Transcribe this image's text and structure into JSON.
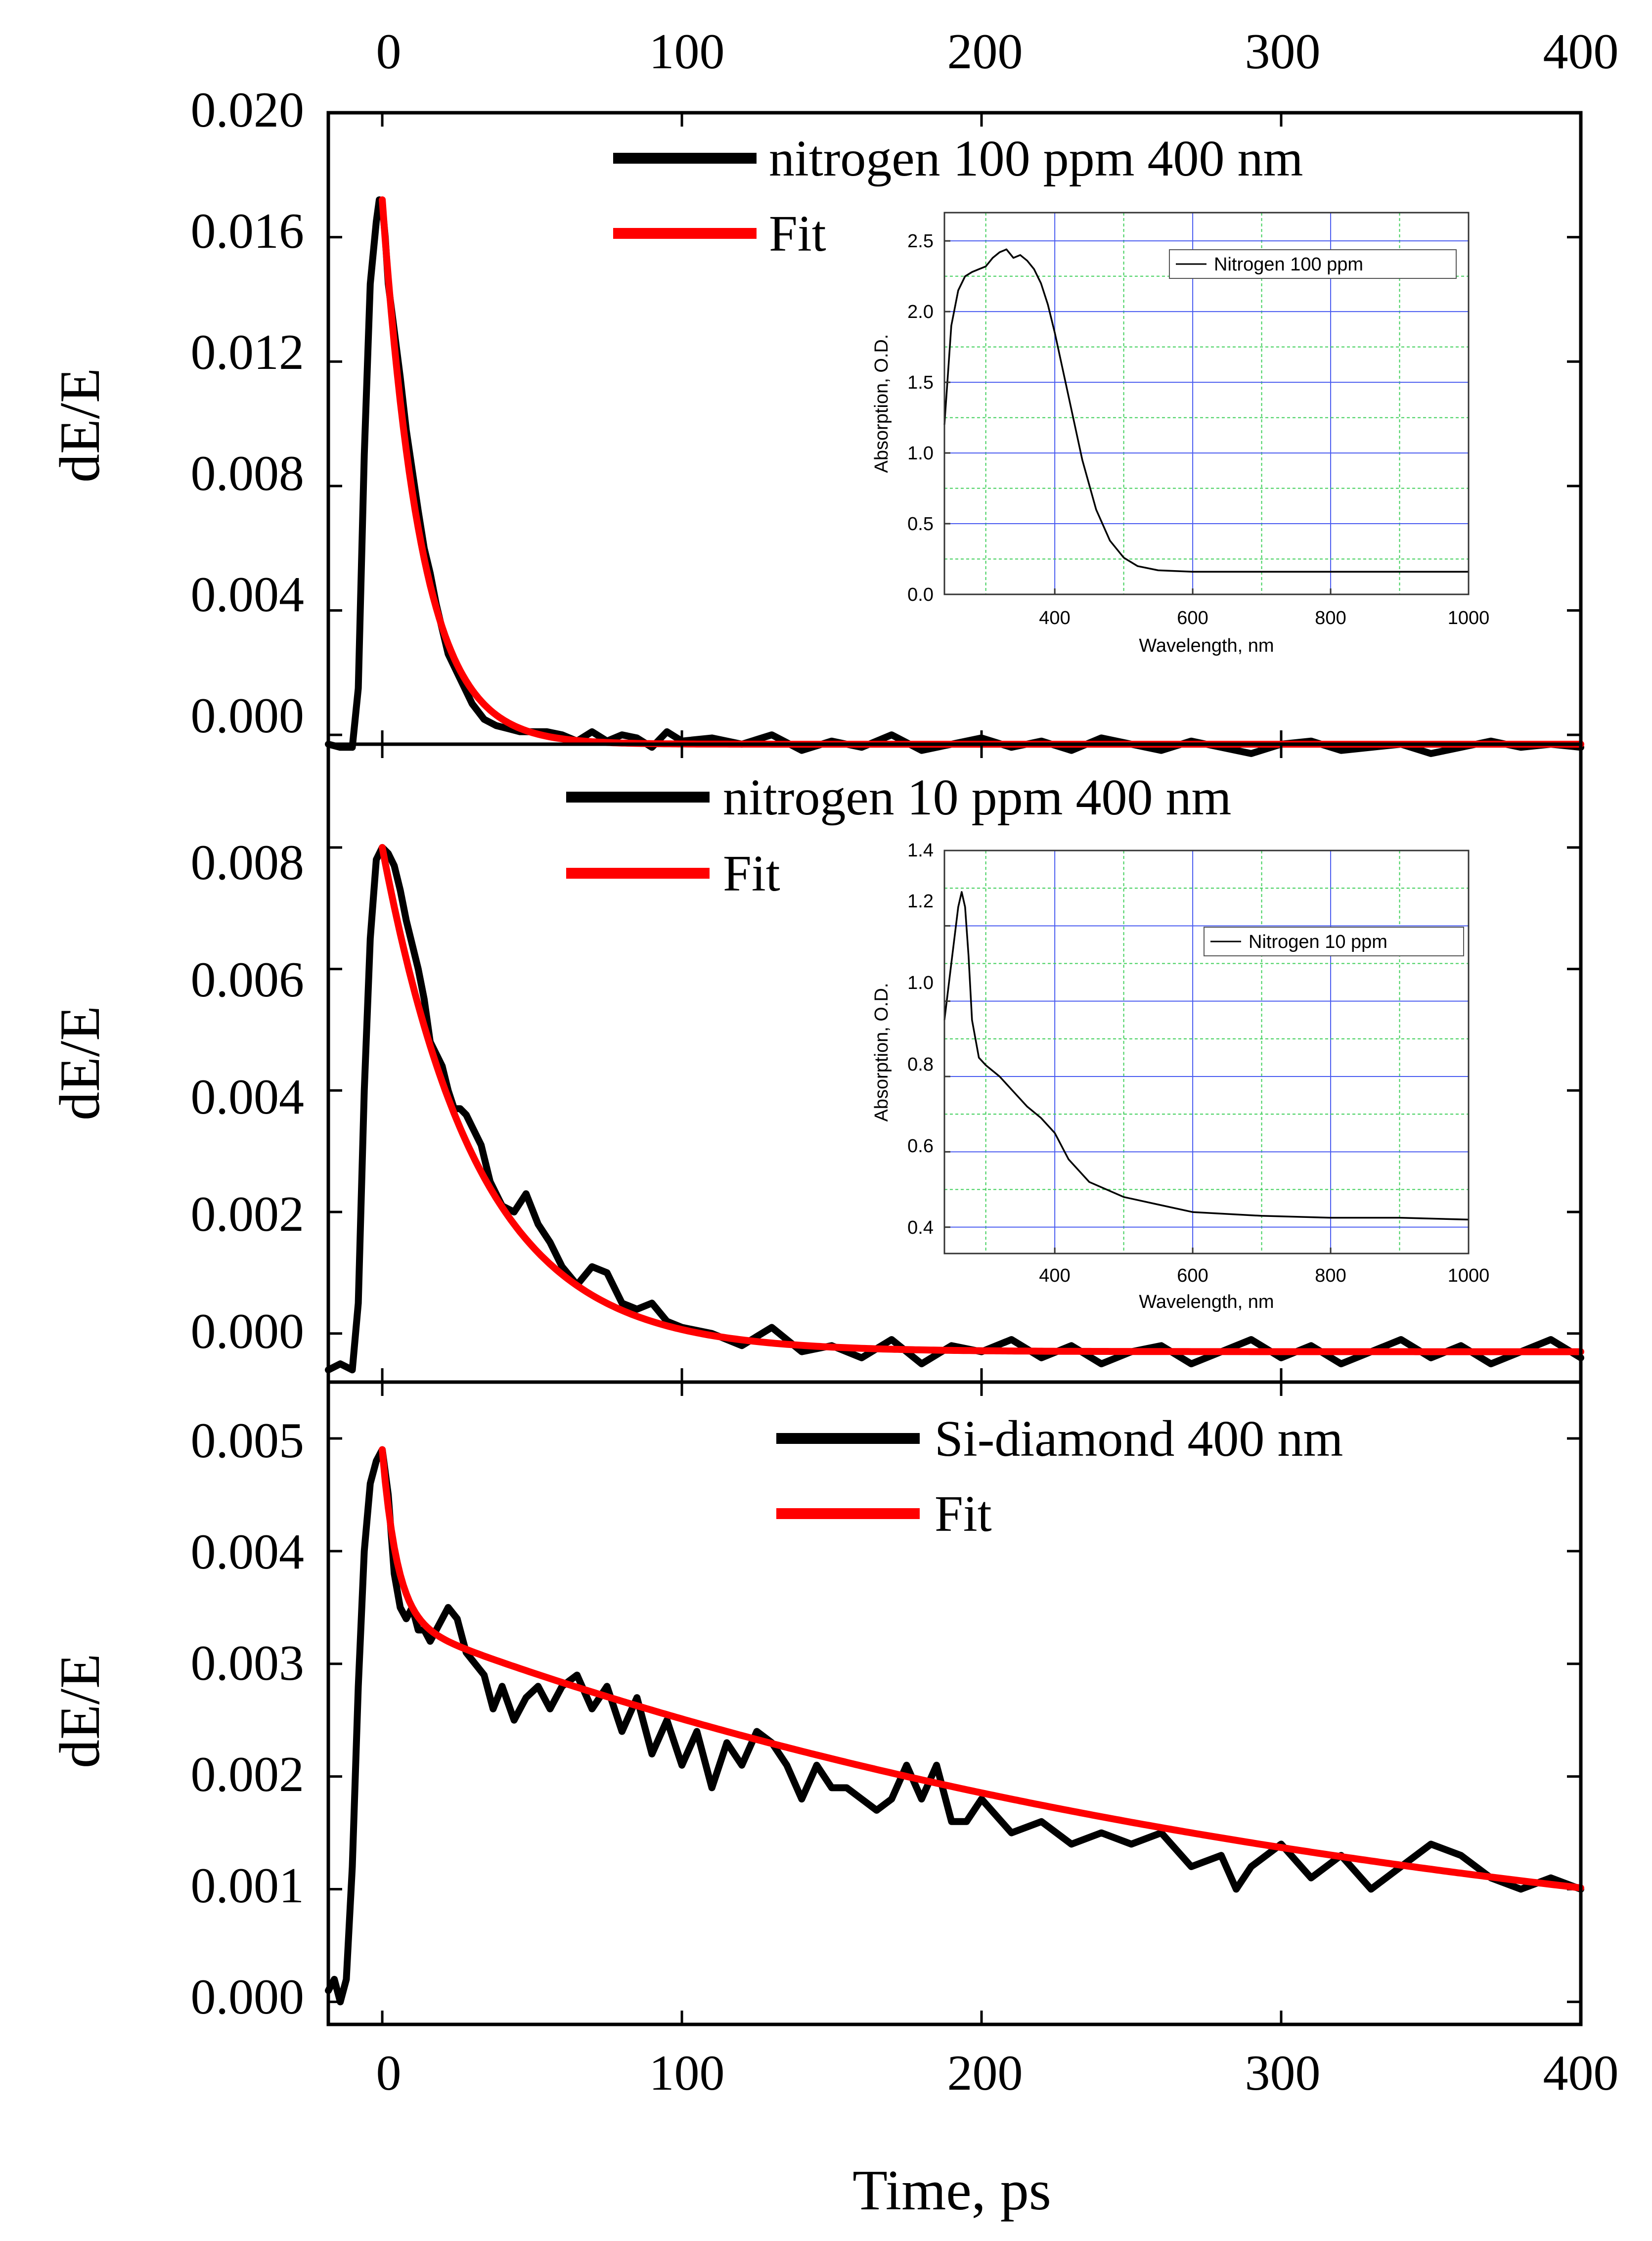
{
  "figure": {
    "xlabel": "Time, ps",
    "x_ticks": [
      "0",
      "100",
      "200",
      "300",
      "400"
    ],
    "xlim": [
      -18,
      400
    ]
  },
  "chart_data": [
    {
      "type": "line",
      "title": "",
      "xlabel": "Time, ps",
      "ylabel": "dE/E",
      "xlim": [
        -18,
        400
      ],
      "ylim": [
        -0.0003,
        0.02
      ],
      "y_ticks": [
        "0.000",
        "0.004",
        "0.008",
        "0.012",
        "0.016",
        "0.020"
      ],
      "y_tick_values": [
        0,
        0.004,
        0.008,
        0.012,
        0.016,
        0.02
      ],
      "series": [
        {
          "name": "nitrogen 100 ppm 400 nm",
          "color": "#000000",
          "x": [
            -18,
            -14,
            -10,
            -8,
            -6,
            -4,
            -2,
            -1,
            0,
            1,
            2,
            4,
            6,
            8,
            10,
            12,
            14,
            16,
            18,
            20,
            22,
            24,
            26,
            28,
            30,
            34,
            38,
            42,
            46,
            50,
            55,
            60,
            65,
            70,
            75,
            80,
            85,
            90,
            95,
            100,
            110,
            120,
            130,
            140,
            150,
            160,
            170,
            180,
            190,
            200,
            210,
            220,
            230,
            240,
            250,
            260,
            270,
            280,
            290,
            300,
            310,
            320,
            330,
            340,
            350,
            360,
            370,
            380,
            390,
            400
          ],
          "y": [
            -0.0003,
            -0.0004,
            -0.0004,
            0.0015,
            0.009,
            0.0145,
            0.0165,
            0.0172,
            0.017,
            0.016,
            0.0145,
            0.013,
            0.0115,
            0.0098,
            0.0085,
            0.0072,
            0.006,
            0.0052,
            0.0042,
            0.0034,
            0.0026,
            0.0022,
            0.0018,
            0.0014,
            0.001,
            0.0005,
            0.0003,
            0.0002,
            0.0001,
            0.0001,
            0.0001,
            0.0,
            -0.0002,
            0.0001,
            -0.0002,
            0.0,
            -0.0001,
            -0.0004,
            0.0001,
            -0.0002,
            -0.0001,
            -0.0003,
            0.0,
            -0.0005,
            -0.0002,
            -0.0004,
            0.0,
            -0.0005,
            -0.0003,
            -0.0001,
            -0.0004,
            -0.0002,
            -0.0005,
            -0.0001,
            -0.0003,
            -0.0005,
            -0.0002,
            -0.0004,
            -0.0006,
            -0.0003,
            -0.0002,
            -0.0005,
            -0.0004,
            -0.0003,
            -0.0006,
            -0.0004,
            -0.0002,
            -0.0004,
            -0.0003,
            -0.0004
          ]
        },
        {
          "name": "Fit",
          "color": "#ff0000",
          "model": "exp",
          "x0": 0,
          "y0": 0.0172,
          "tau": 13,
          "offset": -0.0003,
          "x_end": 400
        }
      ],
      "inset": {
        "type": "line",
        "xlabel": "Wavelength, nm",
        "ylabel": "Absorption, O.D.",
        "xlim": [
          240,
          1000
        ],
        "ylim": [
          0,
          2.7
        ],
        "x_ticks": [
          "400",
          "600",
          "800",
          "1000"
        ],
        "x_tick_values": [
          400,
          600,
          800,
          1000
        ],
        "y_ticks": [
          "0.0",
          "0.5",
          "1.0",
          "1.5",
          "2.0",
          "2.5"
        ],
        "y_tick_values": [
          0,
          0.5,
          1.0,
          1.5,
          2.0,
          2.5
        ],
        "grid": true,
        "legend": "Nitrogen 100 ppm",
        "series": {
          "x": [
            240,
            250,
            260,
            270,
            280,
            290,
            300,
            310,
            320,
            330,
            340,
            350,
            360,
            370,
            380,
            390,
            400,
            420,
            440,
            460,
            480,
            500,
            520,
            550,
            600,
            700,
            800,
            900,
            1000
          ],
          "y": [
            1.2,
            1.9,
            2.15,
            2.25,
            2.28,
            2.3,
            2.32,
            2.38,
            2.42,
            2.44,
            2.38,
            2.4,
            2.36,
            2.3,
            2.2,
            2.05,
            1.85,
            1.4,
            0.95,
            0.6,
            0.38,
            0.26,
            0.2,
            0.17,
            0.16,
            0.16,
            0.16,
            0.16,
            0.16
          ]
        }
      }
    },
    {
      "type": "line",
      "title": "",
      "xlabel": "Time, ps",
      "ylabel": "dE/E",
      "xlim": [
        -18,
        400
      ],
      "ylim": [
        -0.0008,
        0.0097
      ],
      "y_ticks": [
        "0.000",
        "0.002",
        "0.004",
        "0.006",
        "0.008"
      ],
      "y_tick_values": [
        0,
        0.002,
        0.004,
        0.006,
        0.008
      ],
      "series": [
        {
          "name": "nitrogen 10 ppm 400 nm",
          "color": "#000000",
          "x": [
            -18,
            -14,
            -10,
            -8,
            -6,
            -4,
            -2,
            0,
            2,
            4,
            6,
            8,
            10,
            12,
            14,
            16,
            18,
            20,
            22,
            24,
            26,
            28,
            30,
            33,
            36,
            40,
            44,
            48,
            52,
            56,
            60,
            65,
            70,
            75,
            80,
            85,
            90,
            95,
            100,
            110,
            120,
            130,
            140,
            150,
            160,
            170,
            180,
            190,
            200,
            210,
            220,
            230,
            240,
            250,
            260,
            270,
            280,
            290,
            300,
            310,
            320,
            330,
            340,
            350,
            360,
            370,
            380,
            390,
            400
          ],
          "y": [
            -0.0006,
            -0.0005,
            -0.0006,
            0.0005,
            0.004,
            0.0065,
            0.0078,
            0.008,
            0.0079,
            0.0077,
            0.0073,
            0.0068,
            0.0064,
            0.006,
            0.0055,
            0.0048,
            0.0046,
            0.0044,
            0.004,
            0.0037,
            0.0037,
            0.0036,
            0.0034,
            0.0031,
            0.0025,
            0.0021,
            0.002,
            0.0023,
            0.0018,
            0.0015,
            0.0011,
            0.0008,
            0.0011,
            0.001,
            0.0005,
            0.0004,
            0.0005,
            0.0002,
            0.0001,
            0.0,
            -0.0002,
            0.0001,
            -0.0003,
            -0.0002,
            -0.0004,
            -0.0001,
            -0.0005,
            -0.0002,
            -0.0003,
            -0.0001,
            -0.0004,
            -0.0002,
            -0.0005,
            -0.0003,
            -0.0002,
            -0.0005,
            -0.0003,
            -0.0001,
            -0.0004,
            -0.0002,
            -0.0005,
            -0.0003,
            -0.0001,
            -0.0004,
            -0.0002,
            -0.0005,
            -0.0003,
            -0.0001,
            -0.0004
          ]
        },
        {
          "name": "Fit",
          "color": "#ff0000",
          "model": "exp",
          "x0": 0,
          "y0": 0.008,
          "tau": 32,
          "offset": -0.0003,
          "x_end": 400
        }
      ],
      "inset": {
        "type": "line",
        "xlabel": "Wavelength, nm",
        "ylabel": "Absorption, O.D.",
        "xlim": [
          240,
          1000
        ],
        "ylim": [
          0.33,
          1.4
        ],
        "x_ticks": [
          "400",
          "600",
          "800",
          "1000"
        ],
        "x_tick_values": [
          400,
          600,
          800,
          1000
        ],
        "y_ticks": [
          "0.4",
          "0.6",
          "0.8",
          "1.0",
          "1.2",
          "1.4"
        ],
        "y_tick_values": [
          0.4,
          0.6,
          0.8,
          1.0,
          1.2,
          1.4
        ],
        "grid": true,
        "legend": "Nitrogen 10 ppm",
        "series": {
          "x": [
            240,
            250,
            260,
            265,
            270,
            275,
            280,
            290,
            300,
            320,
            340,
            360,
            380,
            400,
            420,
            450,
            500,
            550,
            600,
            700,
            800,
            900,
            1000
          ],
          "y": [
            0.95,
            1.1,
            1.25,
            1.29,
            1.25,
            1.12,
            0.95,
            0.85,
            0.83,
            0.8,
            0.76,
            0.72,
            0.69,
            0.65,
            0.58,
            0.52,
            0.48,
            0.46,
            0.44,
            0.43,
            0.425,
            0.425,
            0.42
          ]
        }
      }
    },
    {
      "type": "line",
      "title": "",
      "xlabel": "Time, ps",
      "ylabel": "dE/E",
      "xlim": [
        -18,
        400
      ],
      "ylim": [
        -0.0002,
        0.0055
      ],
      "y_ticks": [
        "0.000",
        "0.001",
        "0.002",
        "0.003",
        "0.004",
        "0.005"
      ],
      "y_tick_values": [
        0,
        0.001,
        0.002,
        0.003,
        0.004,
        0.005
      ],
      "series": [
        {
          "name": "Si-diamond 400 nm",
          "color": "#000000",
          "x": [
            -18,
            -16,
            -14,
            -12,
            -10,
            -8,
            -6,
            -4,
            -2,
            0,
            2,
            4,
            6,
            8,
            10,
            12,
            14,
            16,
            18,
            20,
            22,
            25,
            28,
            31,
            34,
            37,
            40,
            44,
            48,
            52,
            56,
            60,
            65,
            70,
            75,
            80,
            85,
            90,
            95,
            100,
            105,
            110,
            115,
            120,
            125,
            130,
            135,
            140,
            145,
            150,
            155,
            160,
            165,
            170,
            175,
            180,
            185,
            190,
            195,
            200,
            210,
            220,
            230,
            240,
            250,
            260,
            270,
            280,
            285,
            290,
            300,
            310,
            320,
            330,
            340,
            350,
            360,
            370,
            380,
            390,
            400
          ],
          "y": [
            0.0001,
            0.0002,
            0.0,
            0.0002,
            0.0012,
            0.0028,
            0.004,
            0.0046,
            0.0048,
            0.0049,
            0.0045,
            0.0038,
            0.0035,
            0.0034,
            0.0035,
            0.0033,
            0.0033,
            0.0032,
            0.0033,
            0.0034,
            0.0035,
            0.0034,
            0.0031,
            0.003,
            0.0029,
            0.0026,
            0.0028,
            0.0025,
            0.0027,
            0.0028,
            0.0026,
            0.0028,
            0.0029,
            0.0026,
            0.0028,
            0.0024,
            0.0027,
            0.0022,
            0.0025,
            0.0021,
            0.0024,
            0.0019,
            0.0023,
            0.0021,
            0.0024,
            0.0023,
            0.0021,
            0.0018,
            0.0021,
            0.0019,
            0.0019,
            0.0018,
            0.0017,
            0.0018,
            0.0021,
            0.0018,
            0.0021,
            0.0016,
            0.0016,
            0.0018,
            0.0015,
            0.0016,
            0.0014,
            0.0015,
            0.0014,
            0.0015,
            0.0012,
            0.0013,
            0.001,
            0.0012,
            0.0014,
            0.0011,
            0.0013,
            0.001,
            0.0012,
            0.0014,
            0.0013,
            0.0011,
            0.001,
            0.0011,
            0.001
          ]
        },
        {
          "name": "Fit",
          "color": "#ff0000",
          "model": "biexp",
          "x0": 0,
          "a1": 0.0015,
          "tau1": 5,
          "a2": 0.0034,
          "tau2": 330,
          "offset": 0,
          "x_end": 400
        }
      ]
    }
  ]
}
